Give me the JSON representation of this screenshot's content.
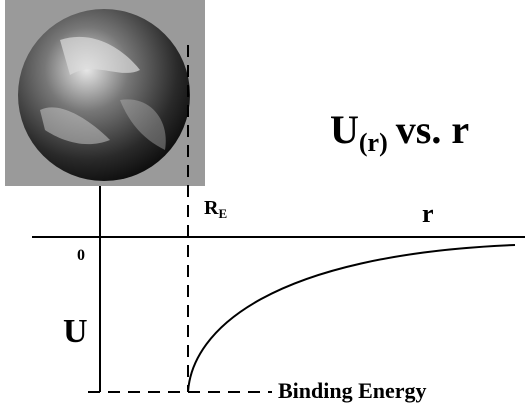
{
  "title": {
    "main": "U",
    "subscript": "(r)",
    "rest": "vs. r"
  },
  "labels": {
    "earth_radius": "R",
    "earth_radius_subscript": "E",
    "x_axis": "r",
    "zero": "0",
    "y_axis": "U",
    "binding_energy": "Binding Energy"
  }
}
